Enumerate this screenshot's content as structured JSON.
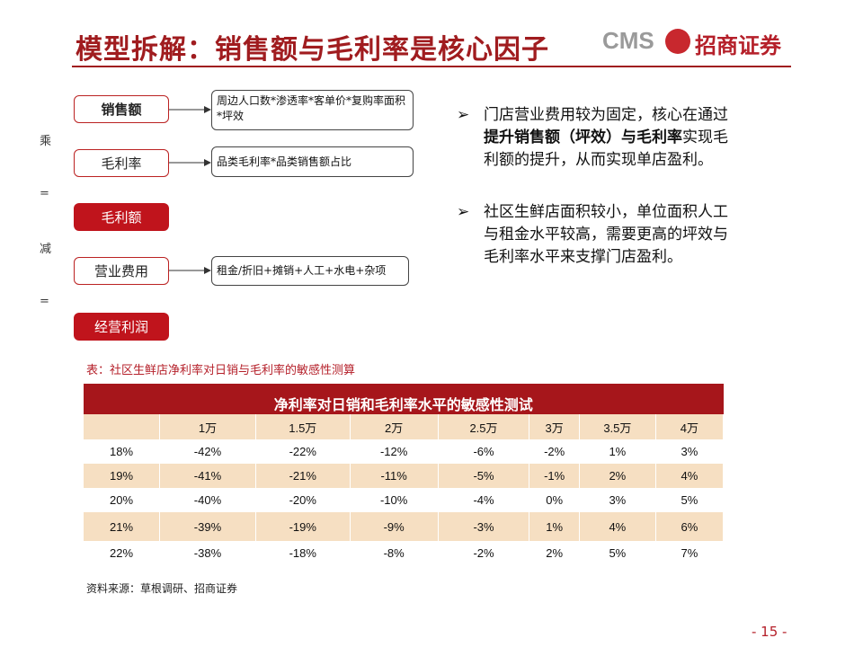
{
  "header": {
    "title": "模型拆解：销售额与毛利率是核心因子",
    "logo_text": "CMS",
    "logo_name": "招商证券"
  },
  "diagram": {
    "operators": [
      "乘",
      "=",
      "减",
      "="
    ],
    "left_boxes": [
      "销售额",
      "毛利率",
      "毛利额",
      "营业费用",
      "经营利润"
    ],
    "right_boxes": [
      "周边人口数*渗透率*客单价*复购率面积*坪效",
      "品类毛利率*品类销售额占比",
      "租金/折旧+摊销+人工+水电+杂项"
    ]
  },
  "bullets": [
    [
      "门店营业费用较为固定，核心在通过",
      "提升销售额（坪效）与毛利率",
      "实现毛利额的提升，从而实现单店盈利。"
    ],
    [
      "社区生鲜店面积较小，单位面积人工与租金水平较高，需要更高的坪效与毛利率水平来支撑门店盈利。"
    ]
  ],
  "table": {
    "caption": "表：社区生鲜店净利率对日销与毛利率的敏感性测算",
    "title": "净利率对日销和毛利率水平的敏感性测试",
    "columns": [
      "1万",
      "1.5万",
      "2万",
      "2.5万",
      "3万",
      "3.5万",
      "4万"
    ],
    "rows": [
      [
        "18%",
        "-42%",
        "-22%",
        "-12%",
        "-6%",
        "-2%",
        "1%",
        "3%"
      ],
      [
        "19%",
        "-41%",
        "-21%",
        "-11%",
        "-5%",
        "-1%",
        "2%",
        "4%"
      ],
      [
        "20%",
        "-40%",
        "-20%",
        "-10%",
        "-4%",
        "0%",
        "3%",
        "5%"
      ],
      [
        "21%",
        "-39%",
        "-19%",
        "-9%",
        "-3%",
        "1%",
        "4%",
        "6%"
      ],
      [
        "22%",
        "-38%",
        "-18%",
        "-8%",
        "-2%",
        "2%",
        "5%",
        "7%"
      ]
    ]
  },
  "footer": {
    "source": "资料来源：草根调研、招商证券",
    "page": "- 15 -"
  }
}
